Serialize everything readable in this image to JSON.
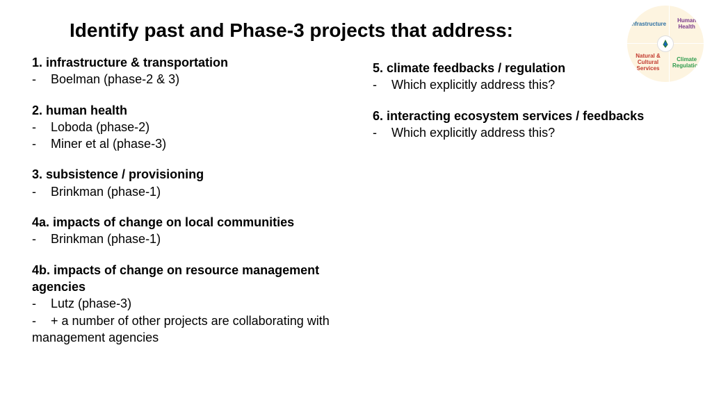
{
  "title": "Identify past and Phase-3 projects that address:",
  "badge": {
    "q1": "Infrastructure",
    "q2": "Human Health",
    "q3": "Natural & Cultural Services",
    "q4": "Climate Regulation"
  },
  "left": [
    {
      "heading": "1. infrastructure & transportation",
      "bullets": [
        "Boelman (phase-2 & 3)"
      ]
    },
    {
      "heading": "2. human health",
      "bullets": [
        "Loboda (phase-2)",
        "Miner et al (phase-3)"
      ]
    },
    {
      "heading": "3. subsistence / provisioning",
      "bullets": [
        "Brinkman (phase-1)"
      ]
    },
    {
      "heading": "4a. impacts of change on local communities",
      "bullets": [
        "Brinkman (phase-1)"
      ]
    },
    {
      "heading": "4b. impacts of change on resource management agencies",
      "bullets": [
        "Lutz (phase-3)",
        "+ a number of other projects are collaborating with management agencies"
      ]
    }
  ],
  "right": [
    {
      "heading": "5. climate feedbacks / regulation",
      "bullets": [
        "Which explicitly address this?"
      ]
    },
    {
      "heading": "6. interacting ecosystem services / feedbacks",
      "bullets": [
        "Which explicitly address this?"
      ]
    }
  ]
}
